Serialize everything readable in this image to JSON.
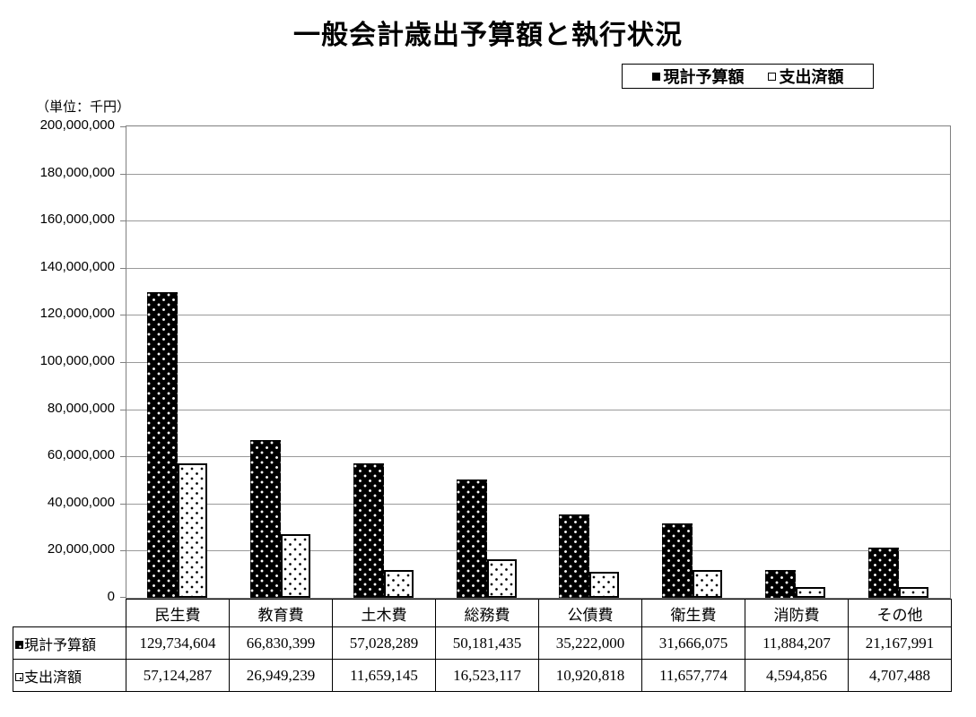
{
  "title": "一般会計歳出予算額と執行状況",
  "unit_label": "（単位：千円）",
  "legend": {
    "items": [
      {
        "label": "現計予算額",
        "marker": "filled"
      },
      {
        "label": "支出済額",
        "marker": "open"
      }
    ]
  },
  "chart_data": {
    "type": "bar",
    "title": "一般会計歳出予算額と執行状況",
    "categories": [
      "民生費",
      "教育費",
      "土木費",
      "総務費",
      "公債費",
      "衛生費",
      "消防費",
      "その他"
    ],
    "series": [
      {
        "name": "現計予算額",
        "marker": "filled",
        "values": [
          129734604,
          66830399,
          57028289,
          50181435,
          35222000,
          31666075,
          11884207,
          21167991
        ]
      },
      {
        "name": "支出済額",
        "marker": "open",
        "values": [
          57124287,
          26949239,
          11659145,
          16523117,
          10920818,
          11657774,
          4594856,
          4707488
        ]
      }
    ],
    "ylabel": "（単位：千円）",
    "ylim": [
      0,
      200000000
    ],
    "ytick_step": 20000000,
    "grid": true,
    "legend_position": "top-right",
    "table_shown": true
  }
}
